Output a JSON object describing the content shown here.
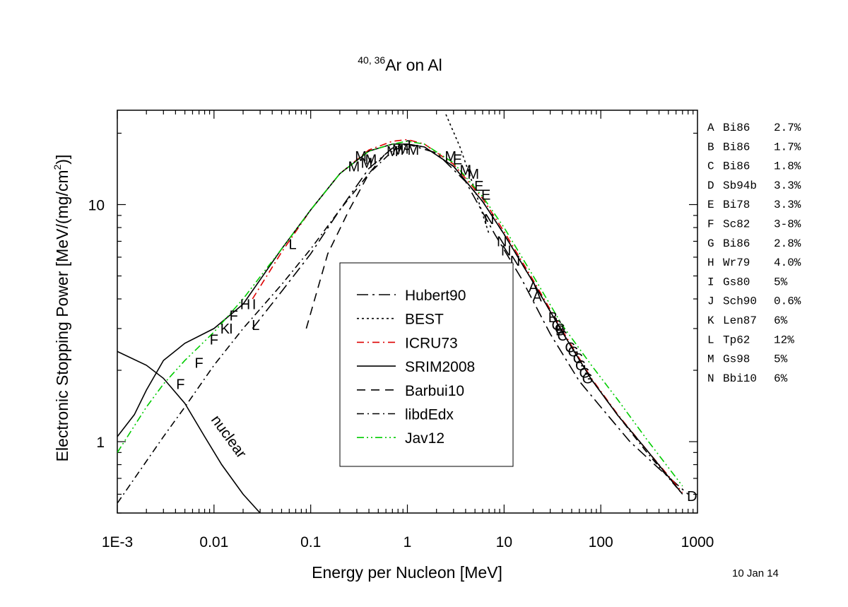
{
  "chart_data": {
    "type": "line",
    "title": {
      "sup": "40, 36",
      "main": "Ar on Al"
    },
    "xlabel": "Energy per Nucleon [MeV]",
    "ylabel": {
      "pre": "Electronic Stopping Power [MeV/(mg/cm",
      "sup": "2",
      "post": ")]"
    },
    "x_scale": "log",
    "y_scale": "log",
    "xlim": [
      0.001,
      1000
    ],
    "ylim": [
      0.5,
      25
    ],
    "x_tick_labels": [
      "1E-3",
      "0.01",
      "0.1",
      "1",
      "10",
      "100",
      "1000"
    ],
    "y_tick_labels": [
      "1",
      "10"
    ],
    "date": "10 Jan 14",
    "legend_placement": "center",
    "series": [
      {
        "name": "Hubert90",
        "dash": "longdashdot",
        "color": "#000000",
        "x": [
          0.025,
          0.05,
          0.1,
          0.2,
          0.4,
          0.7,
          1,
          2,
          4,
          8,
          15,
          30,
          60,
          100,
          200,
          400,
          800
        ],
        "y": [
          3.0,
          4.3,
          6.2,
          9.5,
          14.2,
          17.3,
          18.0,
          16.5,
          12.5,
          7.5,
          4.9,
          2.85,
          1.8,
          1.4,
          1.0,
          0.77,
          0.6
        ]
      },
      {
        "name": "BEST",
        "dash": "dotted",
        "color": "#000000",
        "x": [
          2.5,
          3.5,
          5,
          7
        ],
        "y": [
          24,
          17.5,
          11.5,
          7.5
        ]
      },
      {
        "name": "ICRU73",
        "dash": "dashdot",
        "color": "#dd0000",
        "x": [
          0.025,
          0.05,
          0.1,
          0.2,
          0.4,
          0.7,
          1,
          1.5,
          3,
          6,
          10,
          20,
          40,
          80,
          150,
          300,
          700
        ],
        "y": [
          4.0,
          6.3,
          9.5,
          13.5,
          17.0,
          18.5,
          18.8,
          18.0,
          14.8,
          10.6,
          7.7,
          4.8,
          2.95,
          1.85,
          1.3,
          0.92,
          0.61
        ]
      },
      {
        "name": "SRIM2008",
        "dash": "solid",
        "color": "#000000",
        "x": [
          0.001,
          0.0015,
          0.002,
          0.003,
          0.005,
          0.01,
          0.02,
          0.05,
          0.1,
          0.2,
          0.4,
          0.7,
          1,
          1.5,
          3,
          6,
          10,
          20,
          40,
          80,
          150,
          300,
          700
        ],
        "y": [
          1.05,
          1.3,
          1.65,
          2.2,
          2.6,
          3.0,
          3.8,
          6.5,
          9.5,
          13.5,
          16.8,
          18.0,
          18.0,
          17.5,
          14.5,
          10.3,
          7.5,
          4.7,
          2.9,
          1.83,
          1.29,
          0.92,
          0.6
        ]
      },
      {
        "name": "Barbui10",
        "dash": "dashed",
        "color": "#000000",
        "x": [
          0.09,
          0.15,
          0.25,
          0.4,
          0.6
        ],
        "y": [
          3.0,
          6.2,
          9.5,
          13.5,
          16.5
        ]
      },
      {
        "name": "libdEdx",
        "dash": "dashdot",
        "color": "#000000",
        "x": [
          0.001,
          0.003,
          0.005,
          0.01,
          0.02,
          0.05,
          0.1,
          0.2,
          0.4,
          0.7,
          1,
          1.5,
          3,
          6,
          10,
          20,
          40,
          80,
          150,
          300,
          700
        ],
        "y": [
          0.55,
          1.05,
          1.4,
          2.1,
          3.0,
          4.6,
          6.5,
          9.5,
          13.5,
          16.8,
          18.0,
          17.5,
          14.5,
          10.3,
          7.5,
          4.7,
          2.9,
          1.83,
          1.29,
          0.9,
          0.6
        ]
      },
      {
        "name": "Jav12",
        "dash": "dashdotdot",
        "color": "#00cc00",
        "x": [
          0.001,
          0.002,
          0.003,
          0.005,
          0.01,
          0.02,
          0.05,
          0.1,
          0.2,
          0.4,
          0.7,
          1,
          1.5,
          3,
          6,
          10,
          20,
          40,
          80,
          150,
          300,
          700
        ],
        "y": [
          0.9,
          1.4,
          1.75,
          2.2,
          2.9,
          4.0,
          6.5,
          9.5,
          13.5,
          16.8,
          18.0,
          18.5,
          18.0,
          15.0,
          10.8,
          8.0,
          5.0,
          3.1,
          2.1,
          1.5,
          1.02,
          0.65
        ]
      },
      {
        "name": "nuclear",
        "dash": "solid",
        "color": "#000000",
        "x": [
          0.001,
          0.002,
          0.003,
          0.005,
          0.008,
          0.012,
          0.02,
          0.03
        ],
        "y": [
          2.4,
          2.1,
          1.85,
          1.45,
          1.05,
          0.8,
          0.6,
          0.5
        ]
      }
    ],
    "curve_annotation": {
      "text": "nuclear",
      "x": 0.013,
      "y": 1.05
    },
    "data_points": [
      {
        "label": "F",
        "x": 0.0045,
        "y": 1.75
      },
      {
        "label": "F",
        "x": 0.007,
        "y": 2.15
      },
      {
        "label": "F",
        "x": 0.01,
        "y": 2.7
      },
      {
        "label": "F",
        "x": 0.016,
        "y": 3.4
      },
      {
        "label": "K",
        "x": 0.013,
        "y": 3.0
      },
      {
        "label": "I",
        "x": 0.015,
        "y": 3.0
      },
      {
        "label": "H",
        "x": 0.021,
        "y": 3.8
      },
      {
        "label": "I",
        "x": 0.026,
        "y": 3.8
      },
      {
        "label": "L",
        "x": 0.027,
        "y": 3.1
      },
      {
        "label": "L",
        "x": 0.065,
        "y": 6.8
      },
      {
        "label": "M",
        "x": 0.28,
        "y": 14.5
      },
      {
        "label": "M",
        "x": 0.33,
        "y": 16.0
      },
      {
        "label": "M",
        "x": 0.38,
        "y": 15.0
      },
      {
        "label": "M",
        "x": 0.42,
        "y": 15.5
      },
      {
        "label": "M",
        "x": 0.7,
        "y": 16.8
      },
      {
        "label": "M",
        "x": 0.8,
        "y": 17.0
      },
      {
        "label": "M",
        "x": 0.9,
        "y": 17.2
      },
      {
        "label": "J",
        "x": 1.0,
        "y": 17.8
      },
      {
        "label": "M",
        "x": 1.15,
        "y": 17.0
      },
      {
        "label": "M",
        "x": 2.8,
        "y": 16.0
      },
      {
        "label": "E",
        "x": 3.3,
        "y": 15.5
      },
      {
        "label": "M",
        "x": 4.0,
        "y": 14.0
      },
      {
        "label": "M",
        "x": 4.8,
        "y": 13.5
      },
      {
        "label": "E",
        "x": 5.5,
        "y": 12.0
      },
      {
        "label": "E",
        "x": 6.5,
        "y": 11.0
      },
      {
        "label": "N",
        "x": 7.0,
        "y": 8.7
      },
      {
        "label": "N",
        "x": 9.5,
        "y": 7.0
      },
      {
        "label": "N",
        "x": 10.5,
        "y": 6.4
      },
      {
        "label": "N",
        "x": 13.0,
        "y": 5.8
      },
      {
        "label": "A",
        "x": 20.0,
        "y": 4.5
      },
      {
        "label": "A",
        "x": 22.0,
        "y": 4.1
      },
      {
        "label": "B",
        "x": 32.0,
        "y": 3.35
      },
      {
        "label": "C",
        "x": 35.0,
        "y": 3.1
      },
      {
        "label": "B",
        "x": 38.0,
        "y": 2.95
      },
      {
        "label": "C",
        "x": 40.0,
        "y": 2.8
      },
      {
        "label": "G",
        "x": 38.0,
        "y": 3.0
      },
      {
        "label": "C",
        "x": 48.0,
        "y": 2.5
      },
      {
        "label": "G",
        "x": 52.0,
        "y": 2.4
      },
      {
        "label": "C",
        "x": 58.0,
        "y": 2.25
      },
      {
        "label": "G",
        "x": 62.0,
        "y": 2.1
      },
      {
        "label": "G",
        "x": 68.0,
        "y": 1.95
      },
      {
        "label": "G",
        "x": 73.0,
        "y": 1.85
      },
      {
        "label": "D",
        "x": 880.0,
        "y": 0.59
      }
    ],
    "references": [
      {
        "code": "A",
        "ref": "Bi86",
        "err": "2.7%"
      },
      {
        "code": "B",
        "ref": "Bi86",
        "err": "1.7%"
      },
      {
        "code": "C",
        "ref": "Bi86",
        "err": "1.8%"
      },
      {
        "code": "D",
        "ref": "Sb94b",
        "err": "3.3%"
      },
      {
        "code": "E",
        "ref": "Bi78",
        "err": "3.3%"
      },
      {
        "code": "F",
        "ref": "Sc82",
        "err": "3-8%"
      },
      {
        "code": "G",
        "ref": "Bi86",
        "err": "2.8%"
      },
      {
        "code": "H",
        "ref": "Wr79",
        "err": "4.0%"
      },
      {
        "code": "I",
        "ref": "Gs80",
        "err": "5%"
      },
      {
        "code": "J",
        "ref": "Sch90",
        "err": "0.6%"
      },
      {
        "code": "K",
        "ref": "Len87",
        "err": "6%"
      },
      {
        "code": "L",
        "ref": "Tp62",
        "err": "12%"
      },
      {
        "code": "M",
        "ref": "Gs98",
        "err": "5%"
      },
      {
        "code": "N",
        "ref": "Bbi10",
        "err": "6%"
      }
    ]
  }
}
